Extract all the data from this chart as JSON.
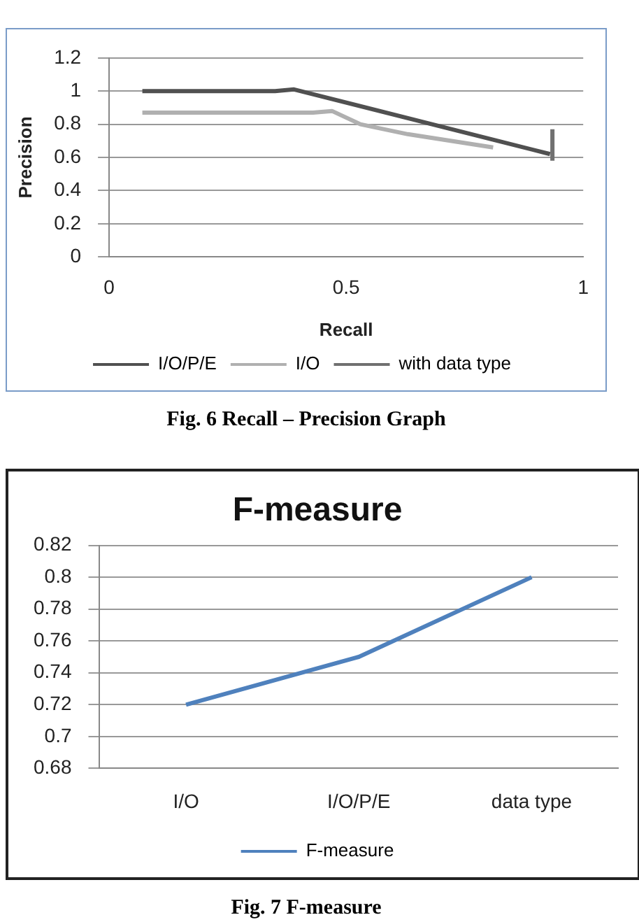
{
  "chart_data": [
    {
      "type": "line",
      "xlabel": "Recall",
      "ylabel": "Precision",
      "xlim": [
        0,
        1
      ],
      "xticks": [
        0,
        0.5,
        1
      ],
      "ylim": [
        0,
        1.2
      ],
      "yticks": [
        0,
        0.2,
        0.4,
        0.6,
        0.8,
        1,
        1.2
      ],
      "grid": "y",
      "legend": "bottom",
      "marker": "none",
      "annotations": [
        "Fig. 6 Recall – Precision Graph"
      ],
      "series": [
        {
          "name": "I/O/P/E",
          "color": "#505050",
          "x": [
            0.07,
            0.35,
            0.39,
            0.93
          ],
          "values": [
            1,
            1,
            1.01,
            0.62
          ]
        },
        {
          "name": "I/O",
          "color": "#b0b0b0",
          "x": [
            0.07,
            0.43,
            0.47,
            0.53,
            0.63,
            0.72,
            0.81
          ],
          "values": [
            0.87,
            0.87,
            0.88,
            0.8,
            0.74,
            0.7,
            0.66
          ]
        },
        {
          "name": "with data type",
          "color": "#707070",
          "x": [
            0.935,
            0.935
          ],
          "values": [
            0.58,
            0.77
          ]
        }
      ]
    },
    {
      "type": "line",
      "title": "F-measure",
      "categories": [
        "I/O",
        "I/O/P/E",
        "data type"
      ],
      "ylim": [
        0.68,
        0.82
      ],
      "yticks": [
        0.68,
        0.7,
        0.72,
        0.74,
        0.76,
        0.78,
        0.8,
        0.82
      ],
      "grid": "y",
      "legend": "bottom",
      "marker": "none",
      "annotations": [
        "Fig. 7 F-measure"
      ],
      "series": [
        {
          "name": "F-measure",
          "color": "#4f81bd",
          "values": [
            0.72,
            0.75,
            0.8
          ]
        }
      ]
    }
  ]
}
